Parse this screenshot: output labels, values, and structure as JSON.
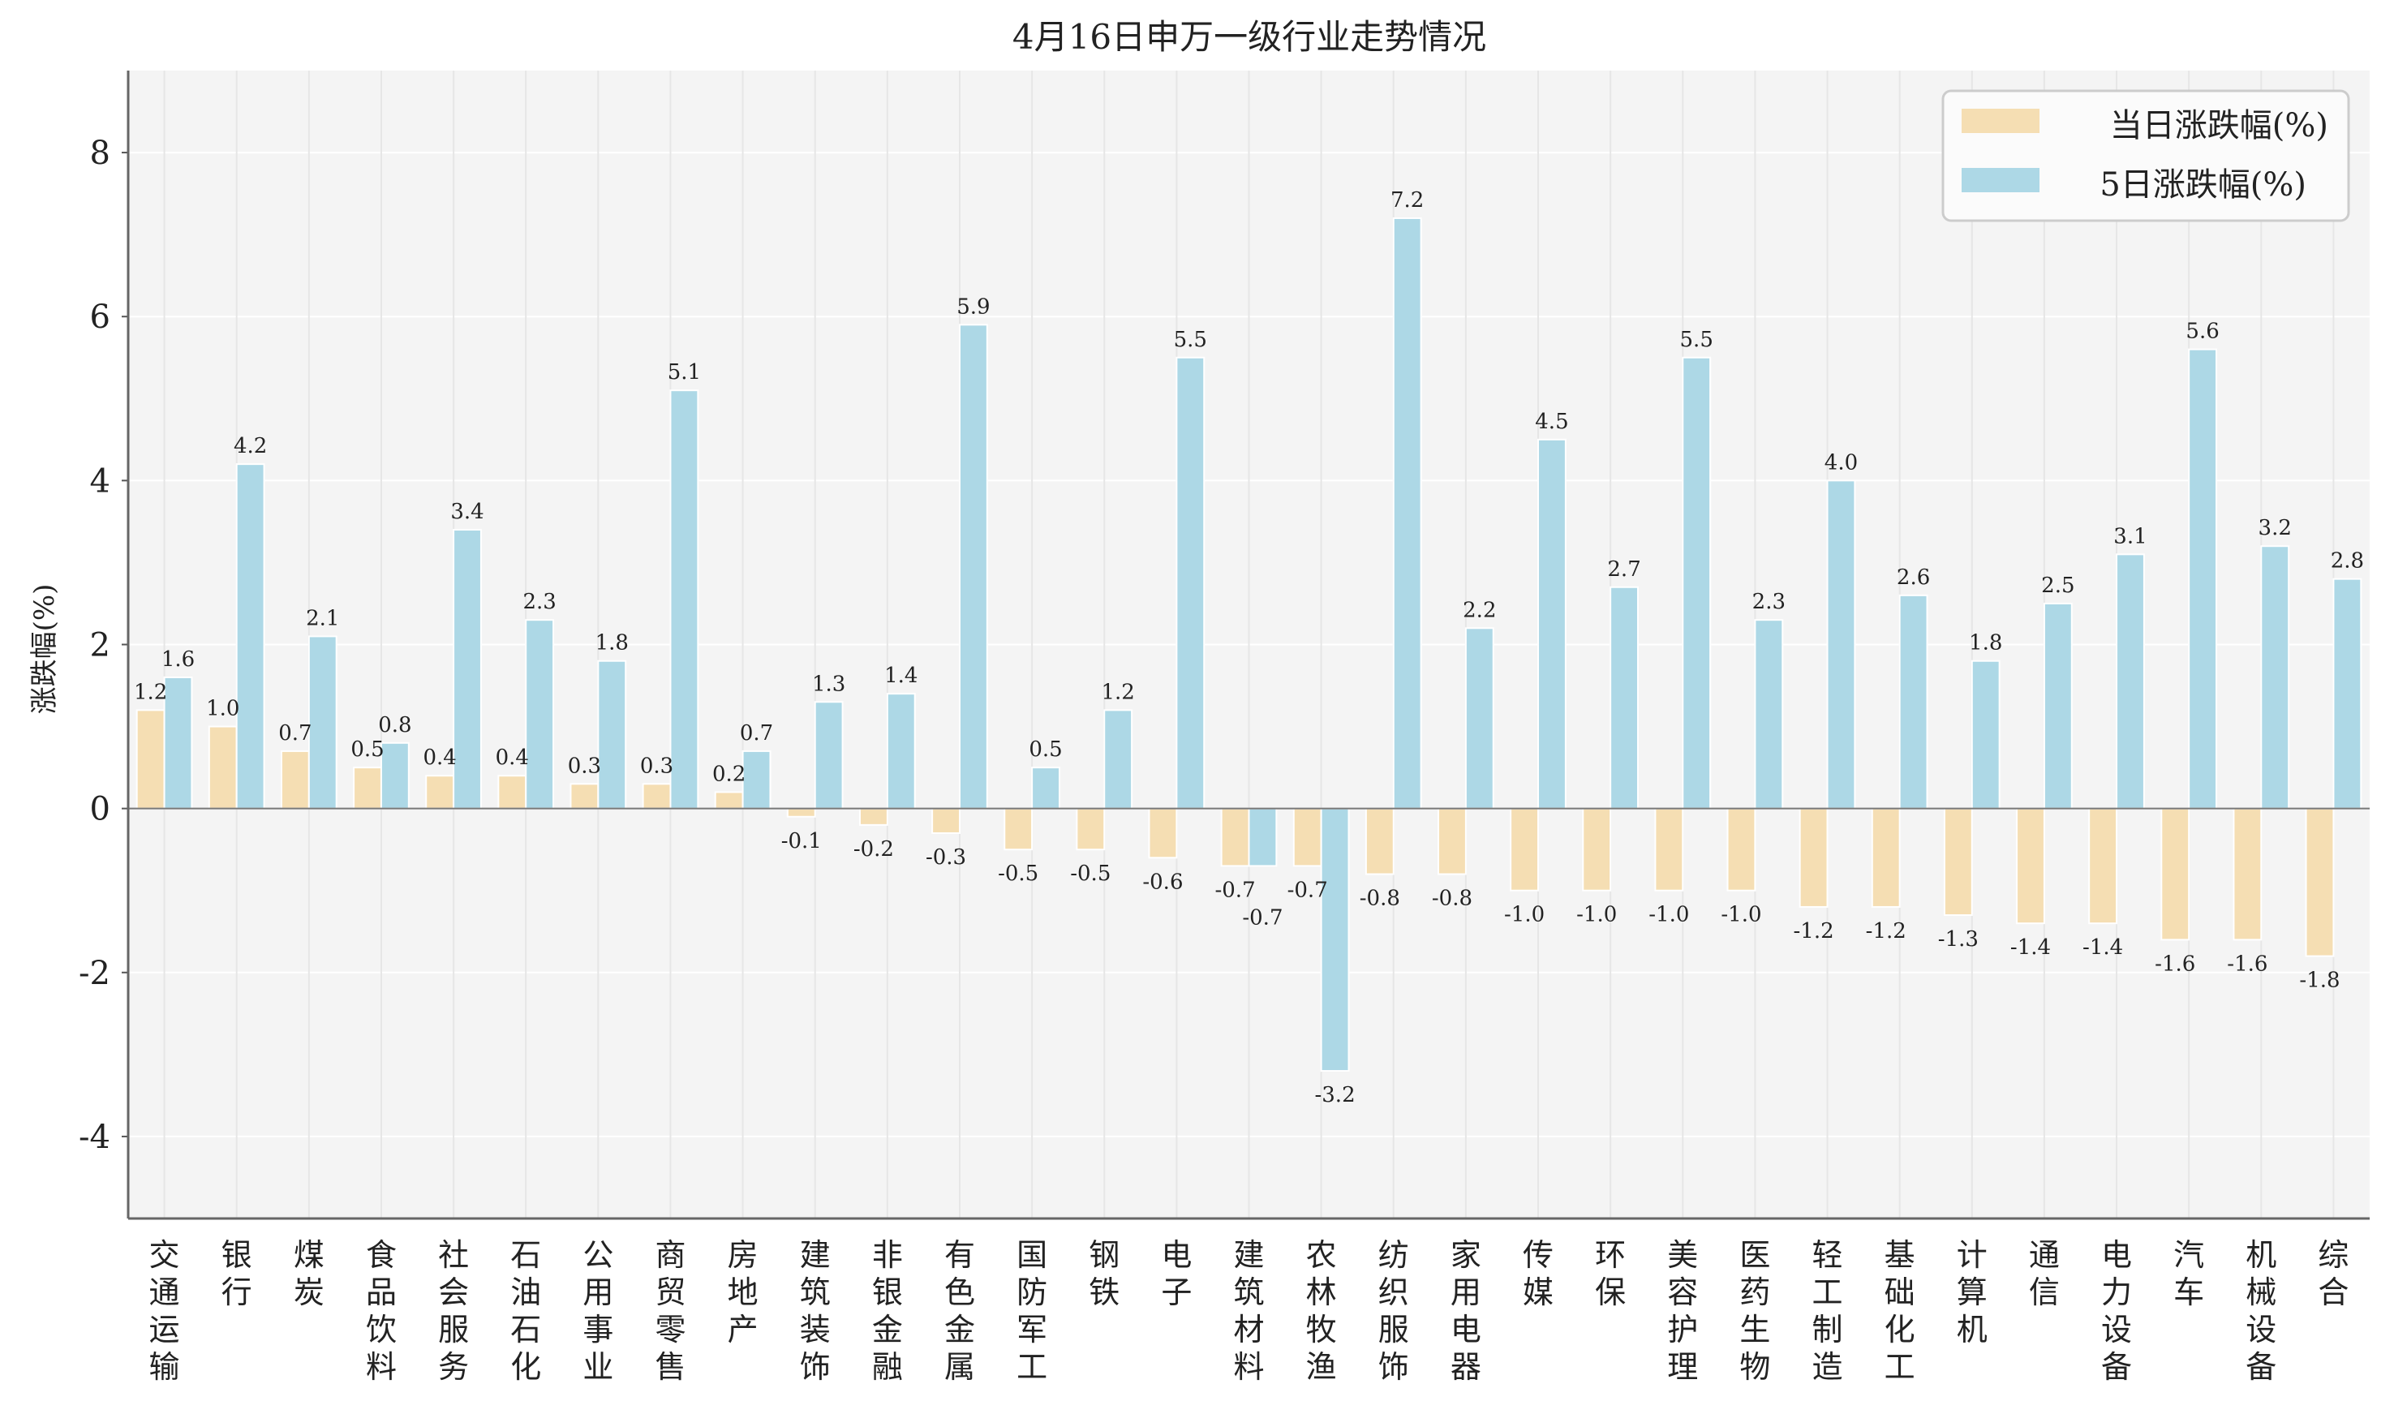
{
  "chart_data": {
    "type": "bar",
    "title": "4月16日申万一级行业走势情况",
    "xlabel": "",
    "ylabel": "涨跌幅(%)",
    "ylim": [
      -5,
      9
    ],
    "yticks": [
      -4,
      -2,
      0,
      2,
      4,
      6,
      8
    ],
    "grid": true,
    "legend_position": "top-right",
    "categories": [
      "交通运输",
      "银行",
      "煤炭",
      "食品饮料",
      "社会服务",
      "石油石化",
      "公用事业",
      "商贸零售",
      "房地产",
      "建筑装饰",
      "非银金融",
      "有色金属",
      "国防军工",
      "钢铁",
      "电子",
      "建筑材料",
      "农林牧渔",
      "纺织服饰",
      "家用电器",
      "传媒",
      "环保",
      "美容护理",
      "医药生物",
      "轻工制造",
      "基础化工",
      "计算机",
      "通信",
      "电力设备",
      "汽车",
      "机械设备",
      "综合"
    ],
    "series": [
      {
        "name": "当日涨跌幅(%)",
        "color": "#F5DEB3",
        "values": [
          1.2,
          1.0,
          0.7,
          0.5,
          0.4,
          0.4,
          0.3,
          0.3,
          0.2,
          -0.1,
          -0.2,
          -0.3,
          -0.5,
          -0.5,
          -0.6,
          -0.7,
          -0.7,
          -0.8,
          -0.8,
          -1.0,
          -1.0,
          -1.0,
          -1.0,
          -1.2,
          -1.2,
          -1.3,
          -1.4,
          -1.4,
          -1.6,
          -1.6,
          -1.8
        ]
      },
      {
        "name": "5日涨跌幅(%)",
        "color": "#ADD8E6",
        "values": [
          1.6,
          4.2,
          2.1,
          0.8,
          3.4,
          2.3,
          1.8,
          5.1,
          0.7,
          1.3,
          1.4,
          5.9,
          0.5,
          1.2,
          5.5,
          -0.7,
          -3.2,
          7.2,
          2.2,
          4.5,
          2.7,
          5.5,
          2.3,
          4.0,
          2.6,
          1.8,
          2.5,
          3.1,
          5.6,
          3.2,
          2.8
        ]
      }
    ]
  }
}
